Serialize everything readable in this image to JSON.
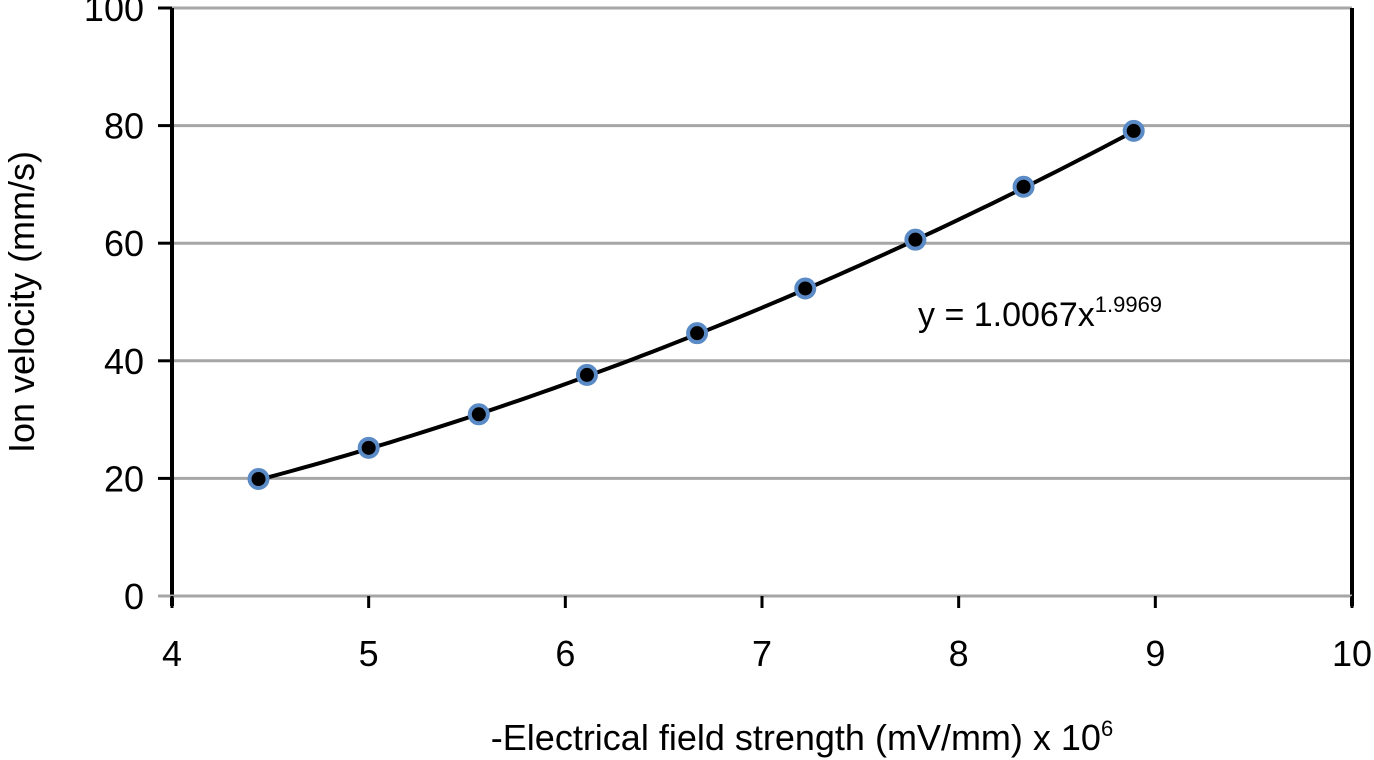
{
  "chart_data": {
    "type": "scatter",
    "title": "",
    "xlabel": "-Electrical field strength  (mV/mm) x 10",
    "xlabel_superscript": "6",
    "ylabel": "Ion velocity (mm/s)",
    "xlim": [
      4,
      10
    ],
    "ylim": [
      0,
      100
    ],
    "x_ticks": [
      4,
      5,
      6,
      7,
      8,
      9,
      10
    ],
    "y_ticks": [
      0,
      20,
      40,
      60,
      80,
      100
    ],
    "grid": "horizontal",
    "legend": "none",
    "series": [
      {
        "x": [
          4.44,
          5.0,
          5.56,
          6.11,
          6.67,
          7.22,
          7.78,
          8.33,
          8.89
        ],
        "y": [
          19.9,
          25.2,
          30.9,
          37.6,
          44.7,
          52.3,
          60.6,
          69.6,
          79.1
        ],
        "marker_fill": "#000000",
        "marker_edge": "#5b8bc6"
      }
    ],
    "trendline": {
      "type": "power",
      "coefficient": 1.0067,
      "exponent": 1.9969,
      "color": "#000000",
      "equation_text": "y = 1.0067x",
      "equation_exponent": "1.9969"
    },
    "colors": {
      "grid": "#a6a6a6",
      "axis": "#000000",
      "marker_fill": "#000000",
      "marker_edge": "#5b8bc6"
    }
  }
}
